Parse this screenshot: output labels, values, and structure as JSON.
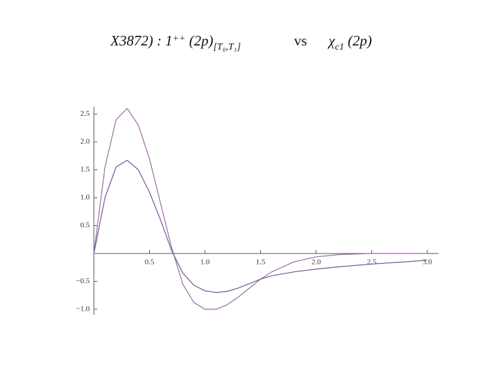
{
  "chart_data": {
    "type": "line",
    "title_left": [
      {
        "text": "X3872) : 1",
        "style": "normal"
      },
      {
        "text": "++",
        "style": "sup"
      },
      {
        "text": " (2p)",
        "style": "normal"
      },
      {
        "text": "[T₀,T₁]",
        "style": "sub"
      }
    ],
    "title_middle": "vs",
    "title_right": [
      {
        "text": "χ",
        "style": "normal"
      },
      {
        "text": "c1",
        "style": "sub"
      },
      {
        "text": " (2p)",
        "style": "normal"
      }
    ],
    "x": [
      0,
      0.1,
      0.2,
      0.3,
      0.4,
      0.5,
      0.6,
      0.7,
      0.8,
      0.9,
      1.0,
      1.1,
      1.2,
      1.3,
      1.4,
      1.5,
      1.6,
      1.8,
      2.0,
      2.2,
      2.5,
      2.8,
      3.0
    ],
    "series": [
      {
        "color": "#9a6aa0",
        "values": [
          0,
          1.55,
          2.4,
          2.6,
          2.3,
          1.7,
          0.9,
          0.1,
          -0.55,
          -0.88,
          -1.0,
          -1.0,
          -0.92,
          -0.78,
          -0.62,
          -0.46,
          -0.33,
          -0.15,
          -0.06,
          -0.02,
          0,
          0,
          0
        ]
      },
      {
        "color": "#6a5a9a",
        "values": [
          0,
          1.0,
          1.55,
          1.67,
          1.5,
          1.1,
          0.6,
          0.05,
          -0.35,
          -0.57,
          -0.67,
          -0.7,
          -0.68,
          -0.62,
          -0.54,
          -0.46,
          -0.4,
          -0.33,
          -0.28,
          -0.24,
          -0.19,
          -0.15,
          -0.12
        ]
      }
    ],
    "xlim": [
      0,
      3.1
    ],
    "ylim": [
      -1.1,
      2.63
    ],
    "xticks": [
      0.5,
      {
        "value": 1,
        "label": "1.0"
      },
      1.5,
      {
        "value": 2,
        "label": "2.0"
      },
      2.5,
      {
        "value": 3,
        "label": "3.0"
      }
    ],
    "yticks": [
      {
        "value": -1,
        "label": "−1.0"
      },
      {
        "value": -0.5,
        "label": "−0.5"
      },
      0.5,
      {
        "value": 1,
        "label": "1.0"
      },
      1.5,
      {
        "value": 2,
        "label": "2.0"
      },
      2.5
    ]
  }
}
